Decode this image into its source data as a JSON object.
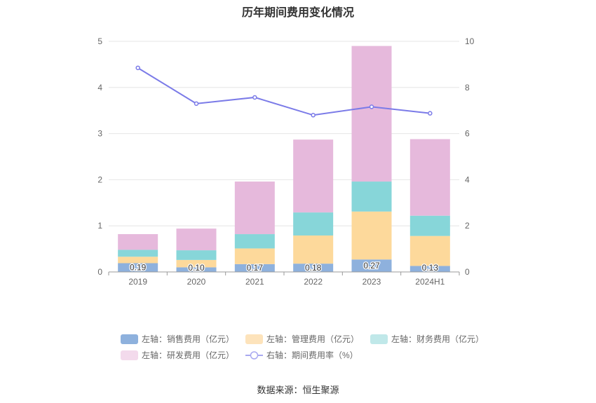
{
  "chart_data": {
    "type": "bar",
    "stacked": true,
    "title": "历年期间费用变化情况",
    "categories": [
      "2019",
      "2020",
      "2021",
      "2022",
      "2023",
      "2024H1"
    ],
    "y_left": {
      "min": 0,
      "max": 5,
      "ticks": [
        "0",
        "1",
        "2",
        "3",
        "4",
        "5"
      ]
    },
    "y_right": {
      "min": 0,
      "max": 10,
      "ticks": [
        "0",
        "2",
        "4",
        "6",
        "8",
        "10"
      ]
    },
    "series": [
      {
        "name": "左轴：销售费用（亿元）",
        "axis": "left",
        "color": "#8eb1dd",
        "values": [
          0.19,
          0.1,
          0.17,
          0.18,
          0.27,
          0.13
        ],
        "labels": [
          "0.19",
          "0.10",
          "0.17",
          "0.18",
          "0.27",
          "0.13"
        ]
      },
      {
        "name": "左轴：管理费用（亿元）",
        "axis": "left",
        "color": "#fdd99b",
        "values": [
          0.14,
          0.16,
          0.34,
          0.61,
          1.04,
          0.65
        ]
      },
      {
        "name": "左轴：财务费用（亿元）",
        "axis": "left",
        "color": "#87d6d9",
        "values": [
          0.15,
          0.21,
          0.31,
          0.5,
          0.65,
          0.44
        ]
      },
      {
        "name": "左轴：研发费用（亿元）",
        "axis": "left",
        "color": "#e6b9dc",
        "values": [
          0.34,
          0.47,
          1.14,
          1.58,
          2.94,
          1.66
        ]
      },
      {
        "name": "右轴：期间费用率（%）",
        "axis": "right",
        "type": "line",
        "color": "#7b7be8",
        "values": [
          8.85,
          7.3,
          7.57,
          6.8,
          7.16,
          6.88
        ]
      }
    ],
    "legend_colors": [
      "#8eb1dd",
      "#fde3bb",
      "#c0e8e9",
      "#f3daec",
      "#a9a9f0"
    ]
  },
  "source": "数据来源：恒生聚源"
}
